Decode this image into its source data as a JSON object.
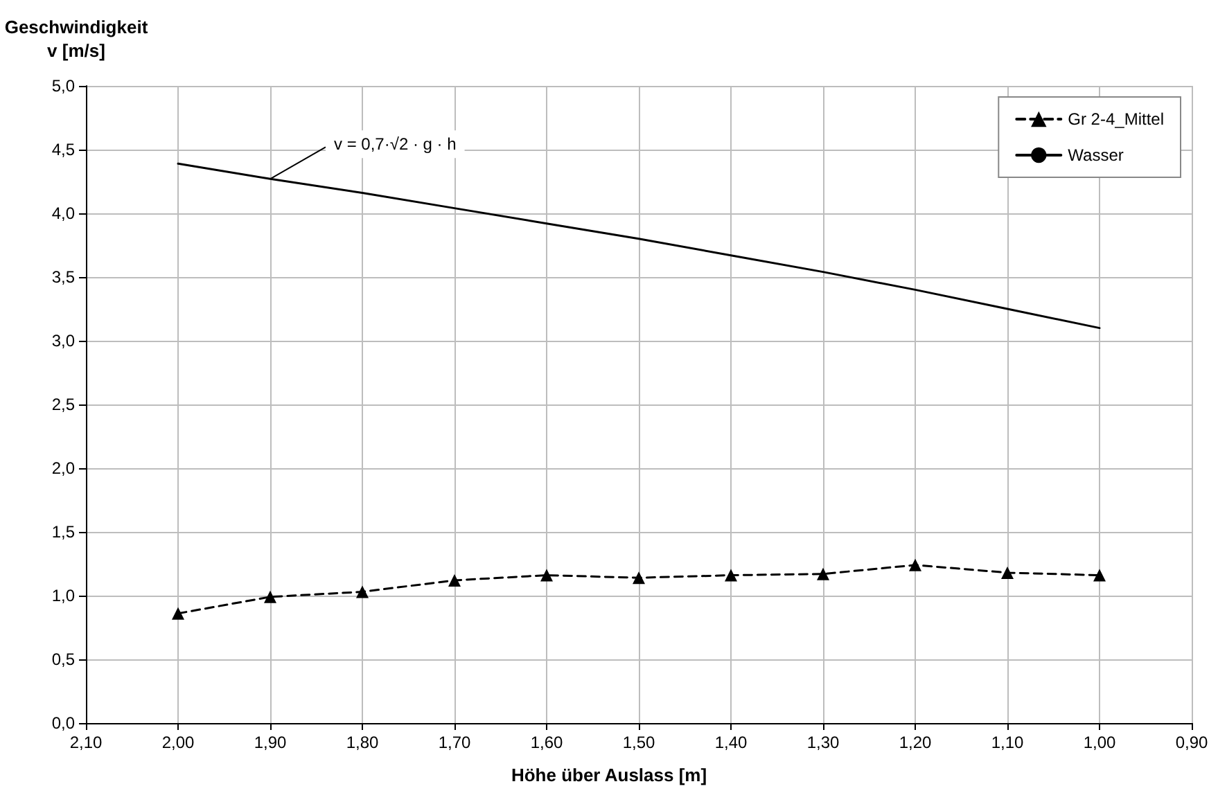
{
  "chart_data": {
    "type": "line",
    "ylabel": "Geschwindigkeit\nv [m/s]",
    "xlabel": "Höhe über Auslass [m]",
    "x": [
      2.0,
      1.9,
      1.8,
      1.7,
      1.6,
      1.5,
      1.4,
      1.3,
      1.2,
      1.1,
      1.0
    ],
    "series": [
      {
        "name": "Gr 2-4_Mittel",
        "color": "#000000",
        "marker": "triangle",
        "line_style": "dashed",
        "values": [
          0.86,
          0.99,
          1.03,
          1.12,
          1.16,
          1.14,
          1.16,
          1.17,
          1.24,
          1.18,
          1.16
        ]
      },
      {
        "name": "Wasser",
        "color": "#000000",
        "marker": "none",
        "line_style": "solid",
        "values": [
          4.39,
          4.27,
          4.16,
          4.04,
          3.92,
          3.8,
          3.67,
          3.54,
          3.4,
          3.25,
          3.1
        ]
      }
    ],
    "xlim": [
      2.1,
      0.9
    ],
    "xticks": [
      {
        "value": 2.1,
        "label": "2,10"
      },
      {
        "value": 2.0,
        "label": "2,00"
      },
      {
        "value": 1.9,
        "label": "1,90"
      },
      {
        "value": 1.8,
        "label": "1,80"
      },
      {
        "value": 1.7,
        "label": "1,70"
      },
      {
        "value": 1.6,
        "label": "1,60"
      },
      {
        "value": 1.5,
        "label": "1,50"
      },
      {
        "value": 1.4,
        "label": "1,40"
      },
      {
        "value": 1.3,
        "label": "1,30"
      },
      {
        "value": 1.2,
        "label": "1,20"
      },
      {
        "value": 1.1,
        "label": "1,10"
      },
      {
        "value": 1.0,
        "label": "1,00"
      },
      {
        "value": 0.9,
        "label": "0,90"
      }
    ],
    "ylim": [
      0,
      5
    ],
    "yticks": [
      {
        "value": 0,
        "label": "0,0"
      },
      {
        "value": 0.5,
        "label": "0,5"
      },
      {
        "value": 1,
        "label": "1,0"
      },
      {
        "value": 1.5,
        "label": "1,5"
      },
      {
        "value": 2,
        "label": "2,0"
      },
      {
        "value": 2.5,
        "label": "2,5"
      },
      {
        "value": 3,
        "label": "3,0"
      },
      {
        "value": 3.5,
        "label": "3,5"
      },
      {
        "value": 4,
        "label": "4,0"
      },
      {
        "value": 4.5,
        "label": "4,5"
      },
      {
        "value": 5,
        "label": "5,0"
      }
    ],
    "annotations": [
      {
        "text": "v = 0,7·√2 · g · h",
        "x": 1.9,
        "y": 4.27
      }
    ],
    "grid": true,
    "legend": "top right"
  }
}
